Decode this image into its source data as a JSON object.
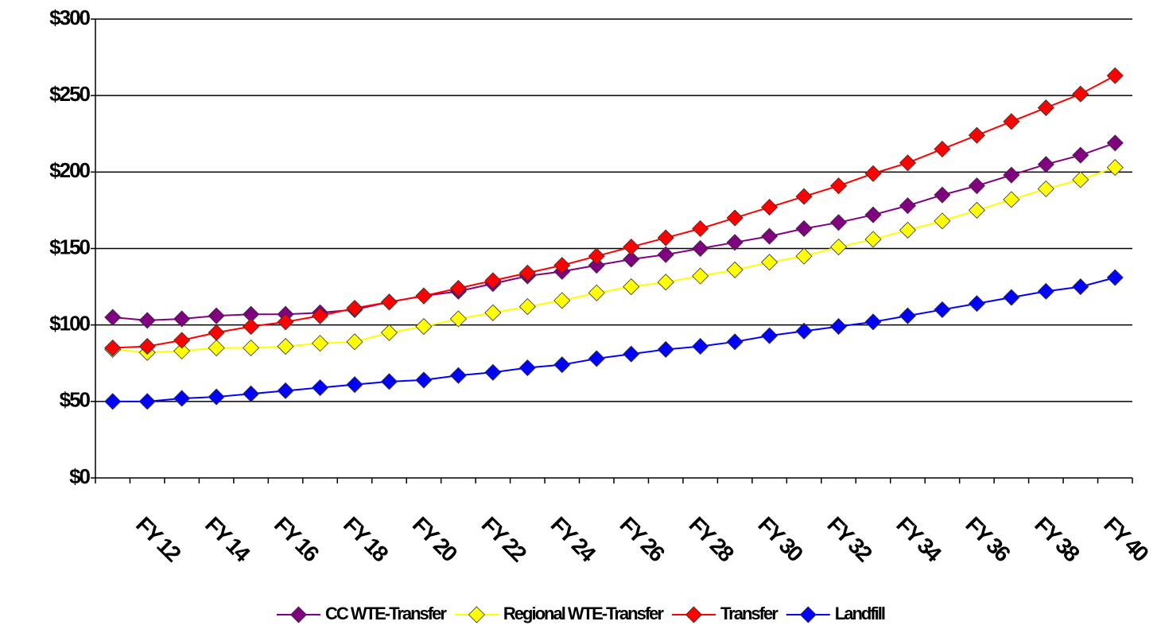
{
  "chart_data": {
    "type": "line",
    "categories": [
      null,
      "FY 12",
      null,
      "FY 14",
      null,
      "FY 16",
      null,
      "FY 18",
      null,
      "FY 20",
      null,
      "FY 22",
      null,
      "FY 24",
      null,
      "FY 26",
      null,
      "FY 28",
      null,
      "FY 30",
      null,
      "FY 32",
      null,
      "FY 34",
      null,
      "FY 36",
      null,
      "FY 38",
      null,
      "FY 40"
    ],
    "series": [
      {
        "name": "CC WTE-Transfer",
        "color": "#800080",
        "values": [
          105,
          103,
          104,
          106,
          107,
          107,
          108,
          110,
          115,
          119,
          122,
          127,
          132,
          135,
          139,
          143,
          146,
          150,
          154,
          158,
          163,
          167,
          172,
          178,
          185,
          191,
          198,
          205,
          211,
          219
        ]
      },
      {
        "name": "Regional WTE-Transfer",
        "color": "#ffff00",
        "values": [
          84,
          82,
          83,
          85,
          85,
          86,
          88,
          89,
          95,
          99,
          104,
          108,
          112,
          116,
          121,
          125,
          128,
          132,
          136,
          141,
          145,
          151,
          156,
          162,
          168,
          175,
          182,
          189,
          195,
          203
        ]
      },
      {
        "name": "Transfer",
        "color": "#ff0000",
        "values": [
          85,
          86,
          90,
          95,
          99,
          102,
          106,
          111,
          115,
          119,
          124,
          129,
          134,
          139,
          145,
          151,
          157,
          163,
          170,
          177,
          184,
          191,
          199,
          206,
          215,
          224,
          233,
          242,
          251,
          263
        ]
      },
      {
        "name": "Landfill",
        "color": "#0000ff",
        "values": [
          50,
          50,
          52,
          53,
          55,
          57,
          59,
          61,
          63,
          64,
          67,
          69,
          72,
          74,
          78,
          81,
          84,
          86,
          89,
          93,
          96,
          99,
          102,
          106,
          110,
          114,
          118,
          122,
          125,
          131
        ]
      }
    ],
    "ylim": [
      0,
      300
    ],
    "yticks": [
      {
        "value": 0,
        "label": "$0"
      },
      {
        "value": 50,
        "label": "$50"
      },
      {
        "value": 100,
        "label": "$100"
      },
      {
        "value": 150,
        "label": "$150"
      },
      {
        "value": 200,
        "label": "$200"
      },
      {
        "value": 250,
        "label": "$250"
      },
      {
        "value": 300,
        "label": "$300"
      }
    ],
    "grid": true,
    "legend": "bottom"
  }
}
